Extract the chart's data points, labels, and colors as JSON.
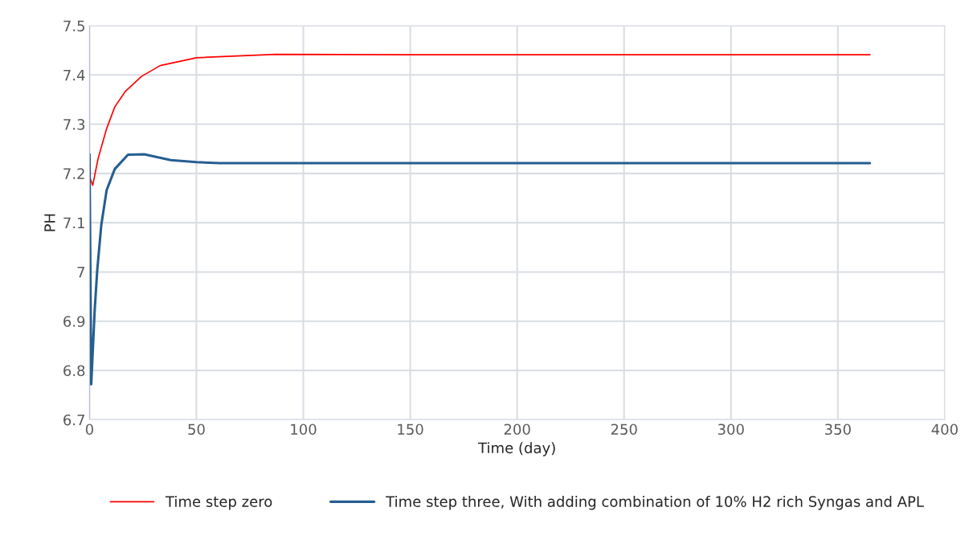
{
  "chart_data": {
    "type": "line",
    "xlabel": "Time (day)",
    "ylabel": "PH",
    "xlim": [
      0,
      400
    ],
    "xticks": [
      0,
      50,
      100,
      150,
      200,
      250,
      300,
      350,
      400
    ],
    "ylim": [
      6.7,
      7.5
    ],
    "yticks": [
      6.7,
      6.8,
      6.9,
      7,
      7.1,
      7.2,
      7.3,
      7.4,
      7.5
    ],
    "grid": true,
    "legend": "bottom",
    "marker": "none",
    "line_style": "solid",
    "series": [
      {
        "name": "Time step zero",
        "color": "#ff0000",
        "x": [
          0,
          1.5,
          4,
          8,
          11.8,
          16.8,
          24.3,
          33,
          50,
          87,
          150,
          250,
          365
        ],
        "values": [
          7.193,
          7.176,
          7.23,
          7.291,
          7.335,
          7.367,
          7.397,
          7.419,
          7.435,
          7.442,
          7.441,
          7.441,
          7.441
        ]
      },
      {
        "name": "Time step three, With adding combination of 10% H2 rich Syngas and APL",
        "color": "#255e91",
        "x": [
          0,
          0.8,
          2.4,
          3.6,
          5.5,
          8,
          11.8,
          18,
          25.6,
          38,
          50,
          61,
          150,
          250,
          365
        ],
        "values": [
          7.239,
          6.772,
          6.921,
          7.003,
          7.095,
          7.166,
          7.209,
          7.238,
          7.239,
          7.227,
          7.223,
          7.221,
          7.221,
          7.221,
          7.221
        ]
      }
    ]
  }
}
